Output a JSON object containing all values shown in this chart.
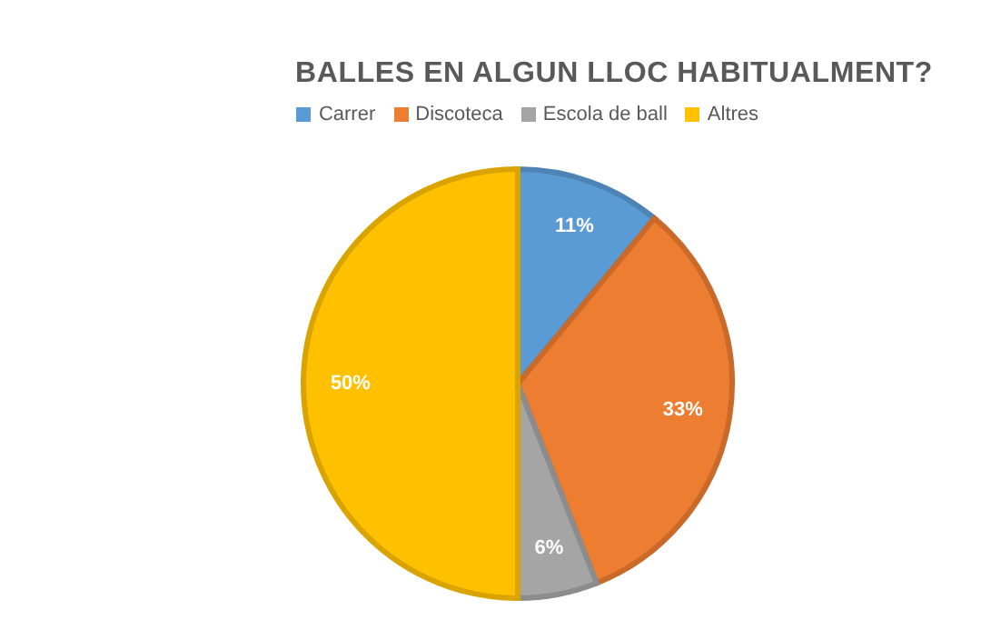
{
  "chart_data": {
    "type": "pie",
    "title": "BALLES EN ALGUN LLOC HABITUALMENT?",
    "categories": [
      "Carrer",
      "Discoteca",
      "Escola de ball",
      "Altres"
    ],
    "values": [
      11,
      33,
      6,
      50
    ],
    "colors": [
      "#5b9bd5",
      "#ed7d31",
      "#a5a5a5",
      "#ffc000"
    ],
    "value_labels": [
      "11%",
      "33%",
      "6%",
      "50%"
    ],
    "legend": "top"
  }
}
